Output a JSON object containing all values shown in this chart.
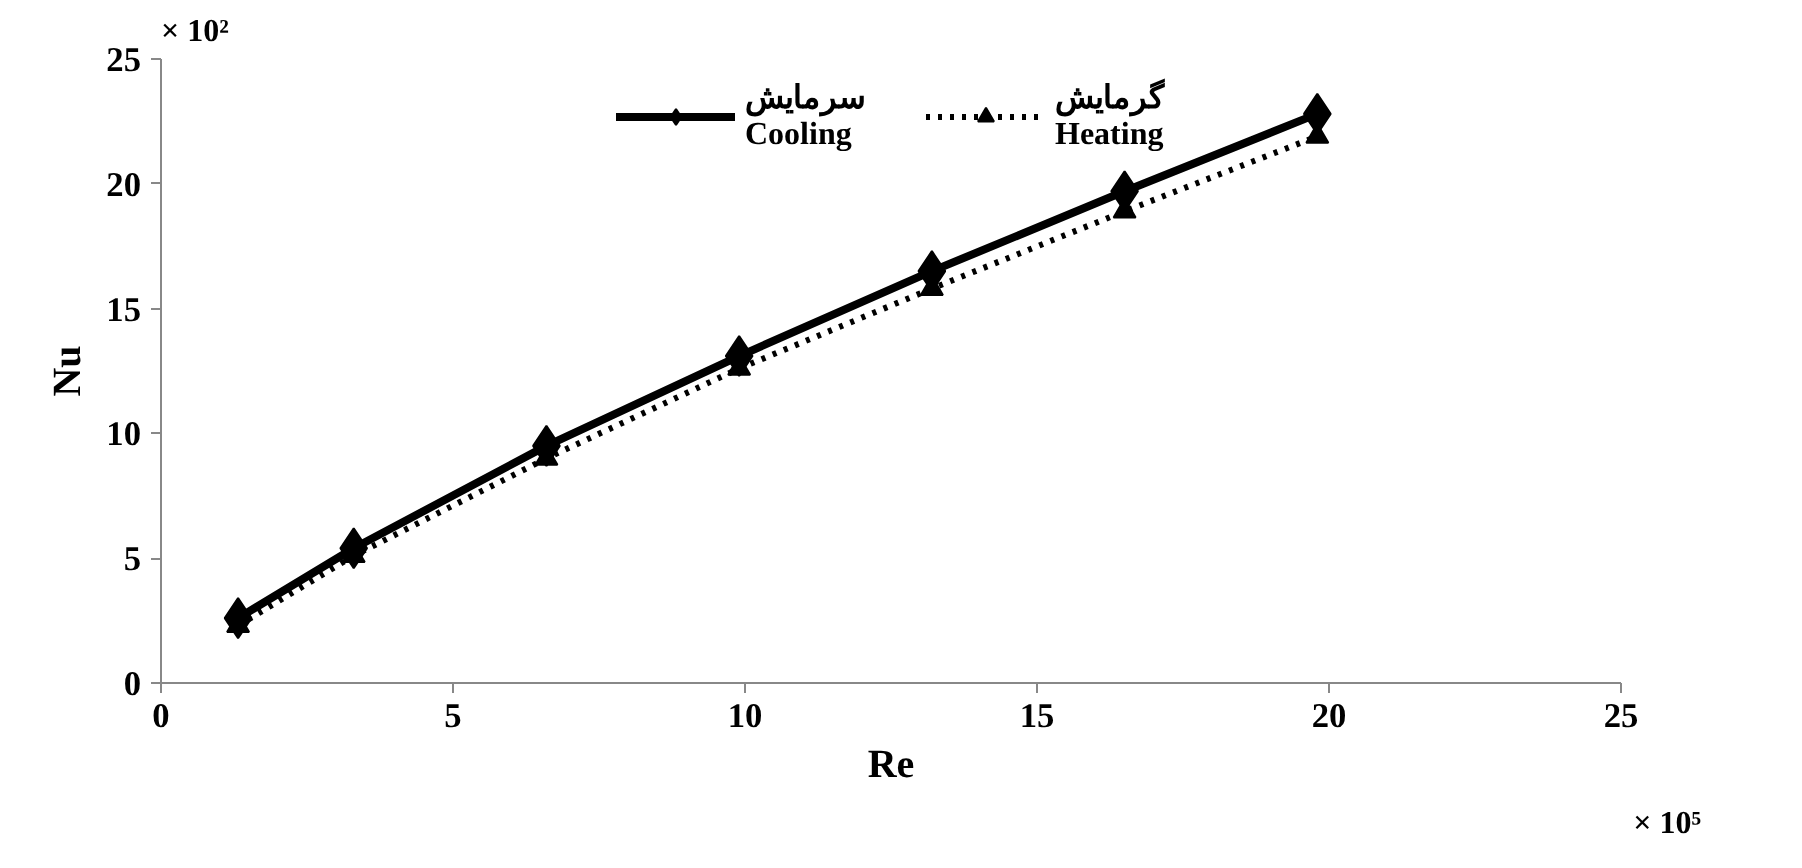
{
  "chart_data": {
    "type": "line",
    "xlabel": "Re",
    "ylabel": "Nu",
    "x": [
      1.32,
      3.3,
      6.6,
      9.9,
      13.2,
      16.5,
      19.8
    ],
    "series": [
      {
        "name": "سرمایش\nCooling",
        "color": "#000000",
        "values": [
          2.6,
          5.4,
          9.5,
          13.1,
          16.5,
          19.7,
          22.8
        ],
        "marker": "diamond",
        "line_style": "solid"
      },
      {
        "name": "گرمایش\nHeating",
        "color": "#000000",
        "values": [
          2.3,
          5.1,
          9.0,
          12.6,
          15.8,
          18.9,
          21.9
        ],
        "marker": "triangle",
        "line_style": "dotted"
      }
    ],
    "xlim": [
      0,
      25
    ],
    "ylim": [
      0,
      25
    ],
    "xticks": [
      0,
      5,
      10,
      15,
      20,
      25
    ],
    "yticks": [
      0,
      5,
      10,
      15,
      20,
      25
    ],
    "annotations": [
      "× 10²",
      "× 10⁵"
    ],
    "grid": false,
    "legend": "top"
  }
}
